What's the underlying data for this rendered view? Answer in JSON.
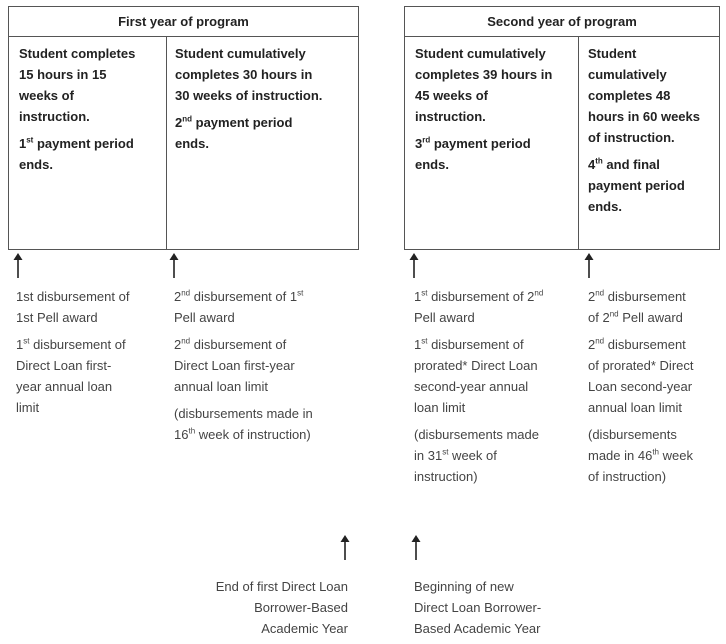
{
  "year1": {
    "header": "First year of program",
    "cell1": {
      "line1": "Student completes",
      "line2": "15 hours in 15",
      "line3": "weeks of",
      "line4": "instruction.",
      "period_num": "1",
      "period_sup": "st",
      "period_rest": " payment period",
      "period_end": "ends."
    },
    "cell2": {
      "line1": "Student cumulatively",
      "line2": "completes 30 hours in",
      "line3": "30 weeks of instruction.",
      "period_num": "2",
      "period_sup": "nd",
      "period_rest": " payment period",
      "period_end": "ends."
    }
  },
  "year2": {
    "header": "Second year of program",
    "cell1": {
      "line1": "Student cumulatively",
      "line2": "completes 39 hours in",
      "line3": "45 weeks of",
      "line4": "instruction.",
      "period_num": "3",
      "period_sup": "rd",
      "period_rest": " payment period",
      "period_end": "ends."
    },
    "cell2": {
      "line1": "Student",
      "line2": "cumulatively",
      "line3": "completes 48",
      "line4": "hours in 60 weeks",
      "line5": "of instruction.",
      "period_num": "4",
      "period_sup": "th",
      "period_rest": " and final",
      "period_line2": "payment period",
      "period_end": "ends."
    }
  },
  "disbursements": {
    "d1": {
      "a1": "1st disbursement of",
      "a2": "1st Pell award",
      "b_num": "1",
      "b_sup": "st",
      "b_rest": " disbursement of",
      "b2": "Direct Loan first-",
      "b3": "year annual loan",
      "b4": "limit"
    },
    "d2": {
      "a_num": "2",
      "a_sup": "nd",
      "a_rest": " disbursement of 1",
      "a_sup2": "st",
      "a2": "Pell award",
      "b_num": "2",
      "b_sup": "nd",
      "b_rest": " disbursement of",
      "b2": "Direct Loan first-year",
      "b3": "annual loan limit",
      "c1": "(disbursements made in",
      "c_num": "16",
      "c_sup": "th",
      "c_rest": " week of instruction)"
    },
    "d3": {
      "a_num": "1",
      "a_sup": "st",
      "a_rest": " disbursement of 2",
      "a_sup2": "nd",
      "a2": "Pell award",
      "b_num": "1",
      "b_sup": "st",
      "b_rest": " disbursement of",
      "b2": "prorated* Direct Loan",
      "b3": "second-year annual",
      "b4": "loan limit",
      "c1": "(disbursements made",
      "c_pre": "in 31",
      "c_sup": "st",
      "c_rest": " week of",
      "c3": "instruction)"
    },
    "d4": {
      "a_num": "2",
      "a_sup": "nd",
      "a_rest": " disbursement",
      "a_pre2": "of 2",
      "a_sup2": "nd",
      "a_rest2": " Pell award",
      "b_num": "2",
      "b_sup": "nd",
      "b_rest": " disbursement",
      "b2": "of prorated* Direct",
      "b3": "Loan second-year",
      "b4": "annual loan limit",
      "c1": "(disbursements",
      "c_pre": "made in 46",
      "c_sup": "th",
      "c_rest": " week",
      "c3": "of instruction)"
    }
  },
  "academic_year": {
    "end": {
      "l1": "End of first Direct Loan",
      "l2": "Borrower-Based",
      "l3": "Academic Year"
    },
    "begin": {
      "l1": "Beginning of new",
      "l2": "Direct Loan Borrower-",
      "l3": "Based Academic Year"
    }
  }
}
